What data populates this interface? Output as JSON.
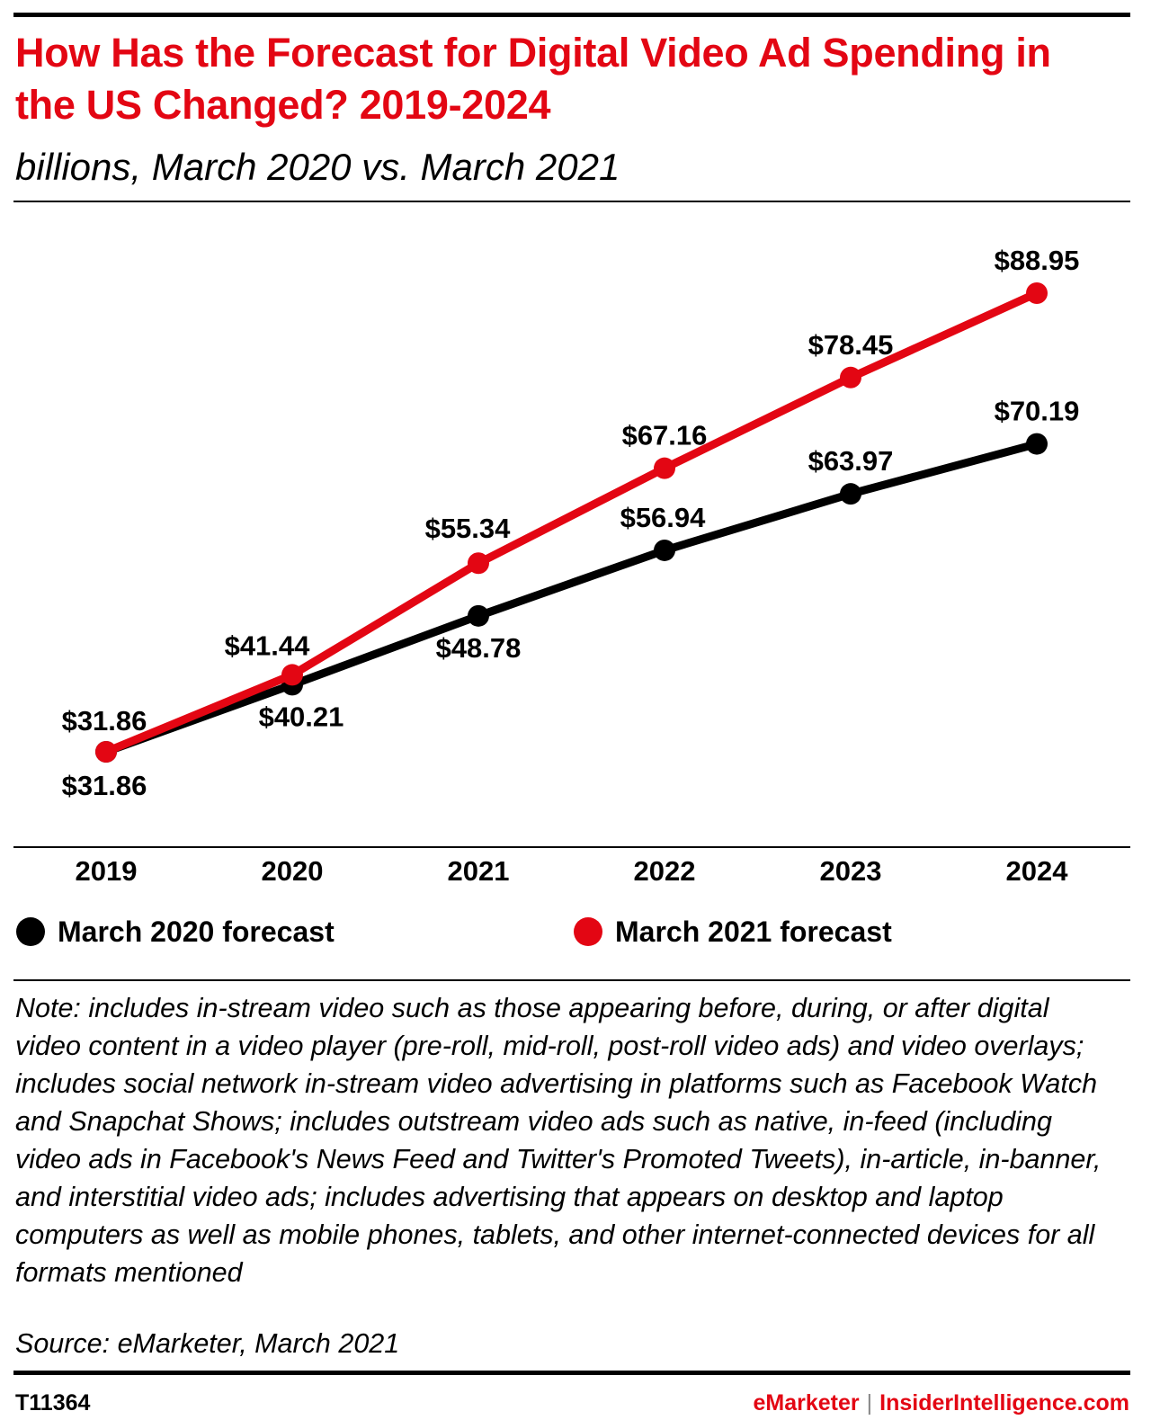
{
  "header": {
    "title": "How Has the Forecast for Digital Video Ad Spending in the US Changed? 2019-2024",
    "subtitle": "billions, March 2020 vs. March 2021"
  },
  "colors": {
    "accent": "#e30613",
    "series_2020": "#000000",
    "series_2021": "#e30613"
  },
  "chart_data": {
    "type": "line",
    "title": "How Has the Forecast for Digital Video Ad Spending in the US Changed? 2019-2024",
    "subtitle": "billions, March 2020 vs. March 2021",
    "categories": [
      "2019",
      "2020",
      "2021",
      "2022",
      "2023",
      "2024"
    ],
    "series": [
      {
        "name": "March 2020 forecast",
        "color": "#000000",
        "values": [
          31.86,
          40.21,
          48.78,
          56.94,
          63.97,
          70.19
        ],
        "labels": [
          "$31.86",
          "$40.21",
          "$48.78",
          "$56.94",
          "$63.97",
          "$70.19"
        ]
      },
      {
        "name": "March 2021 forecast",
        "color": "#e30613",
        "values": [
          31.86,
          41.44,
          55.34,
          67.16,
          78.45,
          88.95
        ],
        "labels": [
          "$31.86",
          "$41.44",
          "$55.34",
          "$67.16",
          "$78.45",
          "$88.95"
        ]
      }
    ],
    "grid": false,
    "legend_position": "bottom"
  },
  "footer": {
    "note": "Note: includes in-stream video such as those appearing before, during, or after digital video content in a video player (pre-roll, mid-roll, post-roll video ads) and video overlays; includes social network in-stream video advertising in platforms such as Facebook Watch and Snapchat Shows; includes outstream video ads such as native, in-feed (including video ads in Facebook's News Feed and Twitter's Promoted Tweets), in-article, in-banner, and interstitial video ads; includes advertising that appears on desktop and laptop computers as well as mobile phones, tablets, and other internet-connected devices for all formats mentioned",
    "source": "Source: eMarketer, March 2021",
    "chart_id": "T11364",
    "brand_1": "eMarketer",
    "separator": "|",
    "brand_2": "InsiderIntelligence.com"
  }
}
